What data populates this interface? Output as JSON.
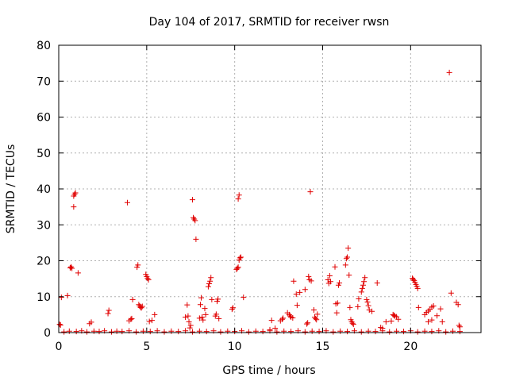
{
  "chart_data": {
    "type": "scatter",
    "title": "Day 104 of 2017, SRMTID for receiver rwsn",
    "xlabel": "GPS time / hours",
    "ylabel": "SRMTID / TECUs",
    "xlim": [
      0,
      24
    ],
    "ylim": [
      0,
      80
    ],
    "xticks": [
      0,
      5,
      10,
      15,
      20
    ],
    "yticks": [
      0,
      10,
      20,
      30,
      40,
      50,
      60,
      70,
      80
    ],
    "grid": true,
    "marker": "plus",
    "colors": {
      "series": "#e00000",
      "grid": "#b0b0b0",
      "axis": "#000000"
    },
    "series": [
      {
        "name": "SRMTID",
        "points": [
          [
            0.05,
            2.3
          ],
          [
            0.1,
            2.1
          ],
          [
            0.15,
            9.8
          ],
          [
            0.5,
            10.3
          ],
          [
            0.65,
            18.0
          ],
          [
            0.7,
            18.3
          ],
          [
            0.75,
            17.9
          ],
          [
            0.85,
            35.0
          ],
          [
            0.85,
            38.0
          ],
          [
            0.9,
            38.5
          ],
          [
            0.95,
            38.9
          ],
          [
            1.1,
            16.6
          ],
          [
            1.75,
            2.5
          ],
          [
            1.85,
            2.9
          ],
          [
            2.8,
            5.3
          ],
          [
            2.85,
            6.2
          ],
          [
            3.9,
            36.2
          ],
          [
            4.0,
            3.3
          ],
          [
            4.1,
            3.7
          ],
          [
            4.15,
            3.9
          ],
          [
            4.2,
            9.2
          ],
          [
            4.45,
            18.2
          ],
          [
            4.5,
            18.8
          ],
          [
            4.55,
            7.8
          ],
          [
            4.6,
            7.4
          ],
          [
            4.65,
            7.0
          ],
          [
            4.7,
            6.9
          ],
          [
            4.75,
            7.3
          ],
          [
            4.95,
            16.2
          ],
          [
            5.0,
            15.6
          ],
          [
            5.05,
            15.1
          ],
          [
            5.1,
            14.7
          ],
          [
            5.15,
            3.1
          ],
          [
            5.3,
            3.4
          ],
          [
            5.45,
            5.0
          ],
          [
            7.2,
            4.3
          ],
          [
            7.3,
            7.7
          ],
          [
            7.35,
            4.6
          ],
          [
            7.4,
            3.0
          ],
          [
            7.45,
            1.3
          ],
          [
            7.5,
            2.0
          ],
          [
            7.6,
            37.0
          ],
          [
            7.65,
            32.0
          ],
          [
            7.7,
            31.6
          ],
          [
            7.75,
            31.2
          ],
          [
            7.8,
            26.0
          ],
          [
            8.0,
            4.0
          ],
          [
            8.05,
            7.8
          ],
          [
            8.1,
            9.7
          ],
          [
            8.15,
            4.3
          ],
          [
            8.2,
            3.5
          ],
          [
            8.3,
            6.7
          ],
          [
            8.35,
            5.0
          ],
          [
            8.5,
            12.8
          ],
          [
            8.55,
            13.6
          ],
          [
            8.6,
            14.3
          ],
          [
            8.65,
            15.3
          ],
          [
            8.7,
            9.2
          ],
          [
            8.9,
            4.6
          ],
          [
            8.95,
            5.1
          ],
          [
            9.0,
            8.7
          ],
          [
            9.05,
            9.3
          ],
          [
            9.1,
            3.9
          ],
          [
            9.85,
            6.5
          ],
          [
            9.9,
            6.9
          ],
          [
            10.1,
            17.6
          ],
          [
            10.15,
            17.9
          ],
          [
            10.2,
            18.2
          ],
          [
            10.25,
            20.2
          ],
          [
            10.3,
            20.8
          ],
          [
            10.35,
            21.0
          ],
          [
            10.2,
            37.2
          ],
          [
            10.25,
            38.3
          ],
          [
            10.5,
            9.8
          ],
          [
            12.0,
            0.8
          ],
          [
            12.1,
            3.4
          ],
          [
            12.3,
            1.2
          ],
          [
            12.6,
            3.3
          ],
          [
            12.7,
            3.7
          ],
          [
            12.75,
            4.0
          ],
          [
            13.0,
            5.5
          ],
          [
            13.1,
            5.0
          ],
          [
            13.15,
            4.6
          ],
          [
            13.2,
            4.3
          ],
          [
            13.3,
            4.1
          ],
          [
            13.35,
            14.3
          ],
          [
            13.5,
            10.7
          ],
          [
            13.55,
            7.6
          ],
          [
            13.7,
            11.2
          ],
          [
            14.0,
            12.0
          ],
          [
            14.1,
            2.4
          ],
          [
            14.15,
            2.7
          ],
          [
            14.2,
            15.6
          ],
          [
            14.25,
            14.7
          ],
          [
            14.3,
            39.2
          ],
          [
            14.35,
            14.4
          ],
          [
            14.5,
            6.3
          ],
          [
            14.55,
            4.3
          ],
          [
            14.6,
            3.9
          ],
          [
            14.65,
            3.6
          ],
          [
            14.7,
            5.1
          ],
          [
            15.3,
            14.7
          ],
          [
            15.35,
            13.7
          ],
          [
            15.4,
            15.8
          ],
          [
            15.45,
            14.2
          ],
          [
            15.7,
            18.3
          ],
          [
            15.75,
            8.0
          ],
          [
            15.8,
            5.5
          ],
          [
            15.85,
            8.2
          ],
          [
            15.9,
            13.2
          ],
          [
            15.95,
            13.8
          ],
          [
            16.3,
            18.8
          ],
          [
            16.35,
            20.6
          ],
          [
            16.4,
            21.0
          ],
          [
            16.45,
            23.5
          ],
          [
            16.5,
            16.0
          ],
          [
            16.55,
            7.0
          ],
          [
            16.6,
            3.6
          ],
          [
            16.65,
            3.0
          ],
          [
            16.7,
            2.6
          ],
          [
            16.75,
            2.3
          ],
          [
            17.0,
            7.2
          ],
          [
            17.05,
            9.4
          ],
          [
            17.2,
            11.3
          ],
          [
            17.25,
            12.3
          ],
          [
            17.3,
            13.2
          ],
          [
            17.35,
            14.2
          ],
          [
            17.4,
            15.3
          ],
          [
            17.5,
            9.2
          ],
          [
            17.55,
            8.5
          ],
          [
            17.6,
            7.5
          ],
          [
            17.65,
            6.3
          ],
          [
            17.8,
            5.9
          ],
          [
            18.1,
            13.8
          ],
          [
            18.3,
            1.4
          ],
          [
            18.4,
            1.2
          ],
          [
            18.6,
            3.0
          ],
          [
            18.9,
            3.2
          ],
          [
            19.0,
            5.0
          ],
          [
            19.05,
            4.8
          ],
          [
            19.1,
            4.6
          ],
          [
            19.2,
            4.4
          ],
          [
            19.3,
            3.7
          ],
          [
            20.1,
            15.1
          ],
          [
            20.15,
            14.8
          ],
          [
            20.2,
            14.5
          ],
          [
            20.25,
            14.0
          ],
          [
            20.3,
            13.4
          ],
          [
            20.35,
            12.9
          ],
          [
            20.4,
            12.3
          ],
          [
            20.45,
            7.0
          ],
          [
            20.8,
            5.0
          ],
          [
            20.9,
            5.6
          ],
          [
            21.0,
            6.0
          ],
          [
            21.1,
            6.5
          ],
          [
            21.2,
            7.1
          ],
          [
            21.3,
            7.4
          ],
          [
            21.0,
            3.0
          ],
          [
            21.2,
            3.5
          ],
          [
            21.5,
            4.7
          ],
          [
            21.7,
            6.6
          ],
          [
            21.8,
            3.0
          ],
          [
            22.2,
            72.4
          ],
          [
            22.3,
            11.0
          ],
          [
            22.6,
            8.4
          ],
          [
            22.7,
            7.8
          ],
          [
            22.75,
            2.0
          ],
          [
            22.8,
            1.6
          ],
          [
            0.3,
            0.2
          ],
          [
            0.6,
            0.4
          ],
          [
            1.0,
            0.3
          ],
          [
            1.3,
            0.5
          ],
          [
            1.6,
            0.2
          ],
          [
            2.0,
            0.4
          ],
          [
            2.3,
            0.3
          ],
          [
            2.6,
            0.5
          ],
          [
            3.0,
            0.2
          ],
          [
            3.3,
            0.4
          ],
          [
            3.6,
            0.3
          ],
          [
            4.0,
            0.5
          ],
          [
            4.4,
            0.2
          ],
          [
            4.8,
            0.4
          ],
          [
            5.2,
            0.3
          ],
          [
            5.6,
            0.5
          ],
          [
            6.0,
            0.2
          ],
          [
            6.4,
            0.4
          ],
          [
            6.8,
            0.3
          ],
          [
            7.2,
            0.5
          ],
          [
            7.6,
            0.2
          ],
          [
            8.0,
            0.4
          ],
          [
            8.4,
            0.3
          ],
          [
            8.8,
            0.5
          ],
          [
            9.2,
            0.2
          ],
          [
            9.6,
            0.4
          ],
          [
            10.0,
            0.3
          ],
          [
            10.4,
            0.5
          ],
          [
            10.8,
            0.2
          ],
          [
            11.2,
            0.4
          ],
          [
            11.6,
            0.3
          ],
          [
            12.0,
            0.5
          ],
          [
            12.4,
            0.2
          ],
          [
            12.8,
            0.4
          ],
          [
            13.2,
            0.3
          ],
          [
            13.6,
            0.5
          ],
          [
            14.0,
            0.2
          ],
          [
            14.4,
            0.4
          ],
          [
            14.8,
            0.3
          ],
          [
            15.2,
            0.5
          ],
          [
            15.6,
            0.2
          ],
          [
            16.0,
            0.4
          ],
          [
            16.4,
            0.3
          ],
          [
            16.8,
            0.5
          ],
          [
            17.2,
            0.2
          ],
          [
            17.6,
            0.4
          ],
          [
            18.0,
            0.3
          ],
          [
            18.4,
            0.5
          ],
          [
            18.8,
            0.2
          ],
          [
            19.2,
            0.4
          ],
          [
            19.6,
            0.3
          ],
          [
            20.0,
            0.5
          ],
          [
            20.4,
            0.2
          ],
          [
            20.8,
            0.4
          ],
          [
            21.2,
            0.3
          ],
          [
            21.6,
            0.5
          ],
          [
            22.0,
            0.2
          ],
          [
            22.4,
            0.4
          ],
          [
            22.8,
            0.3
          ]
        ]
      }
    ]
  }
}
